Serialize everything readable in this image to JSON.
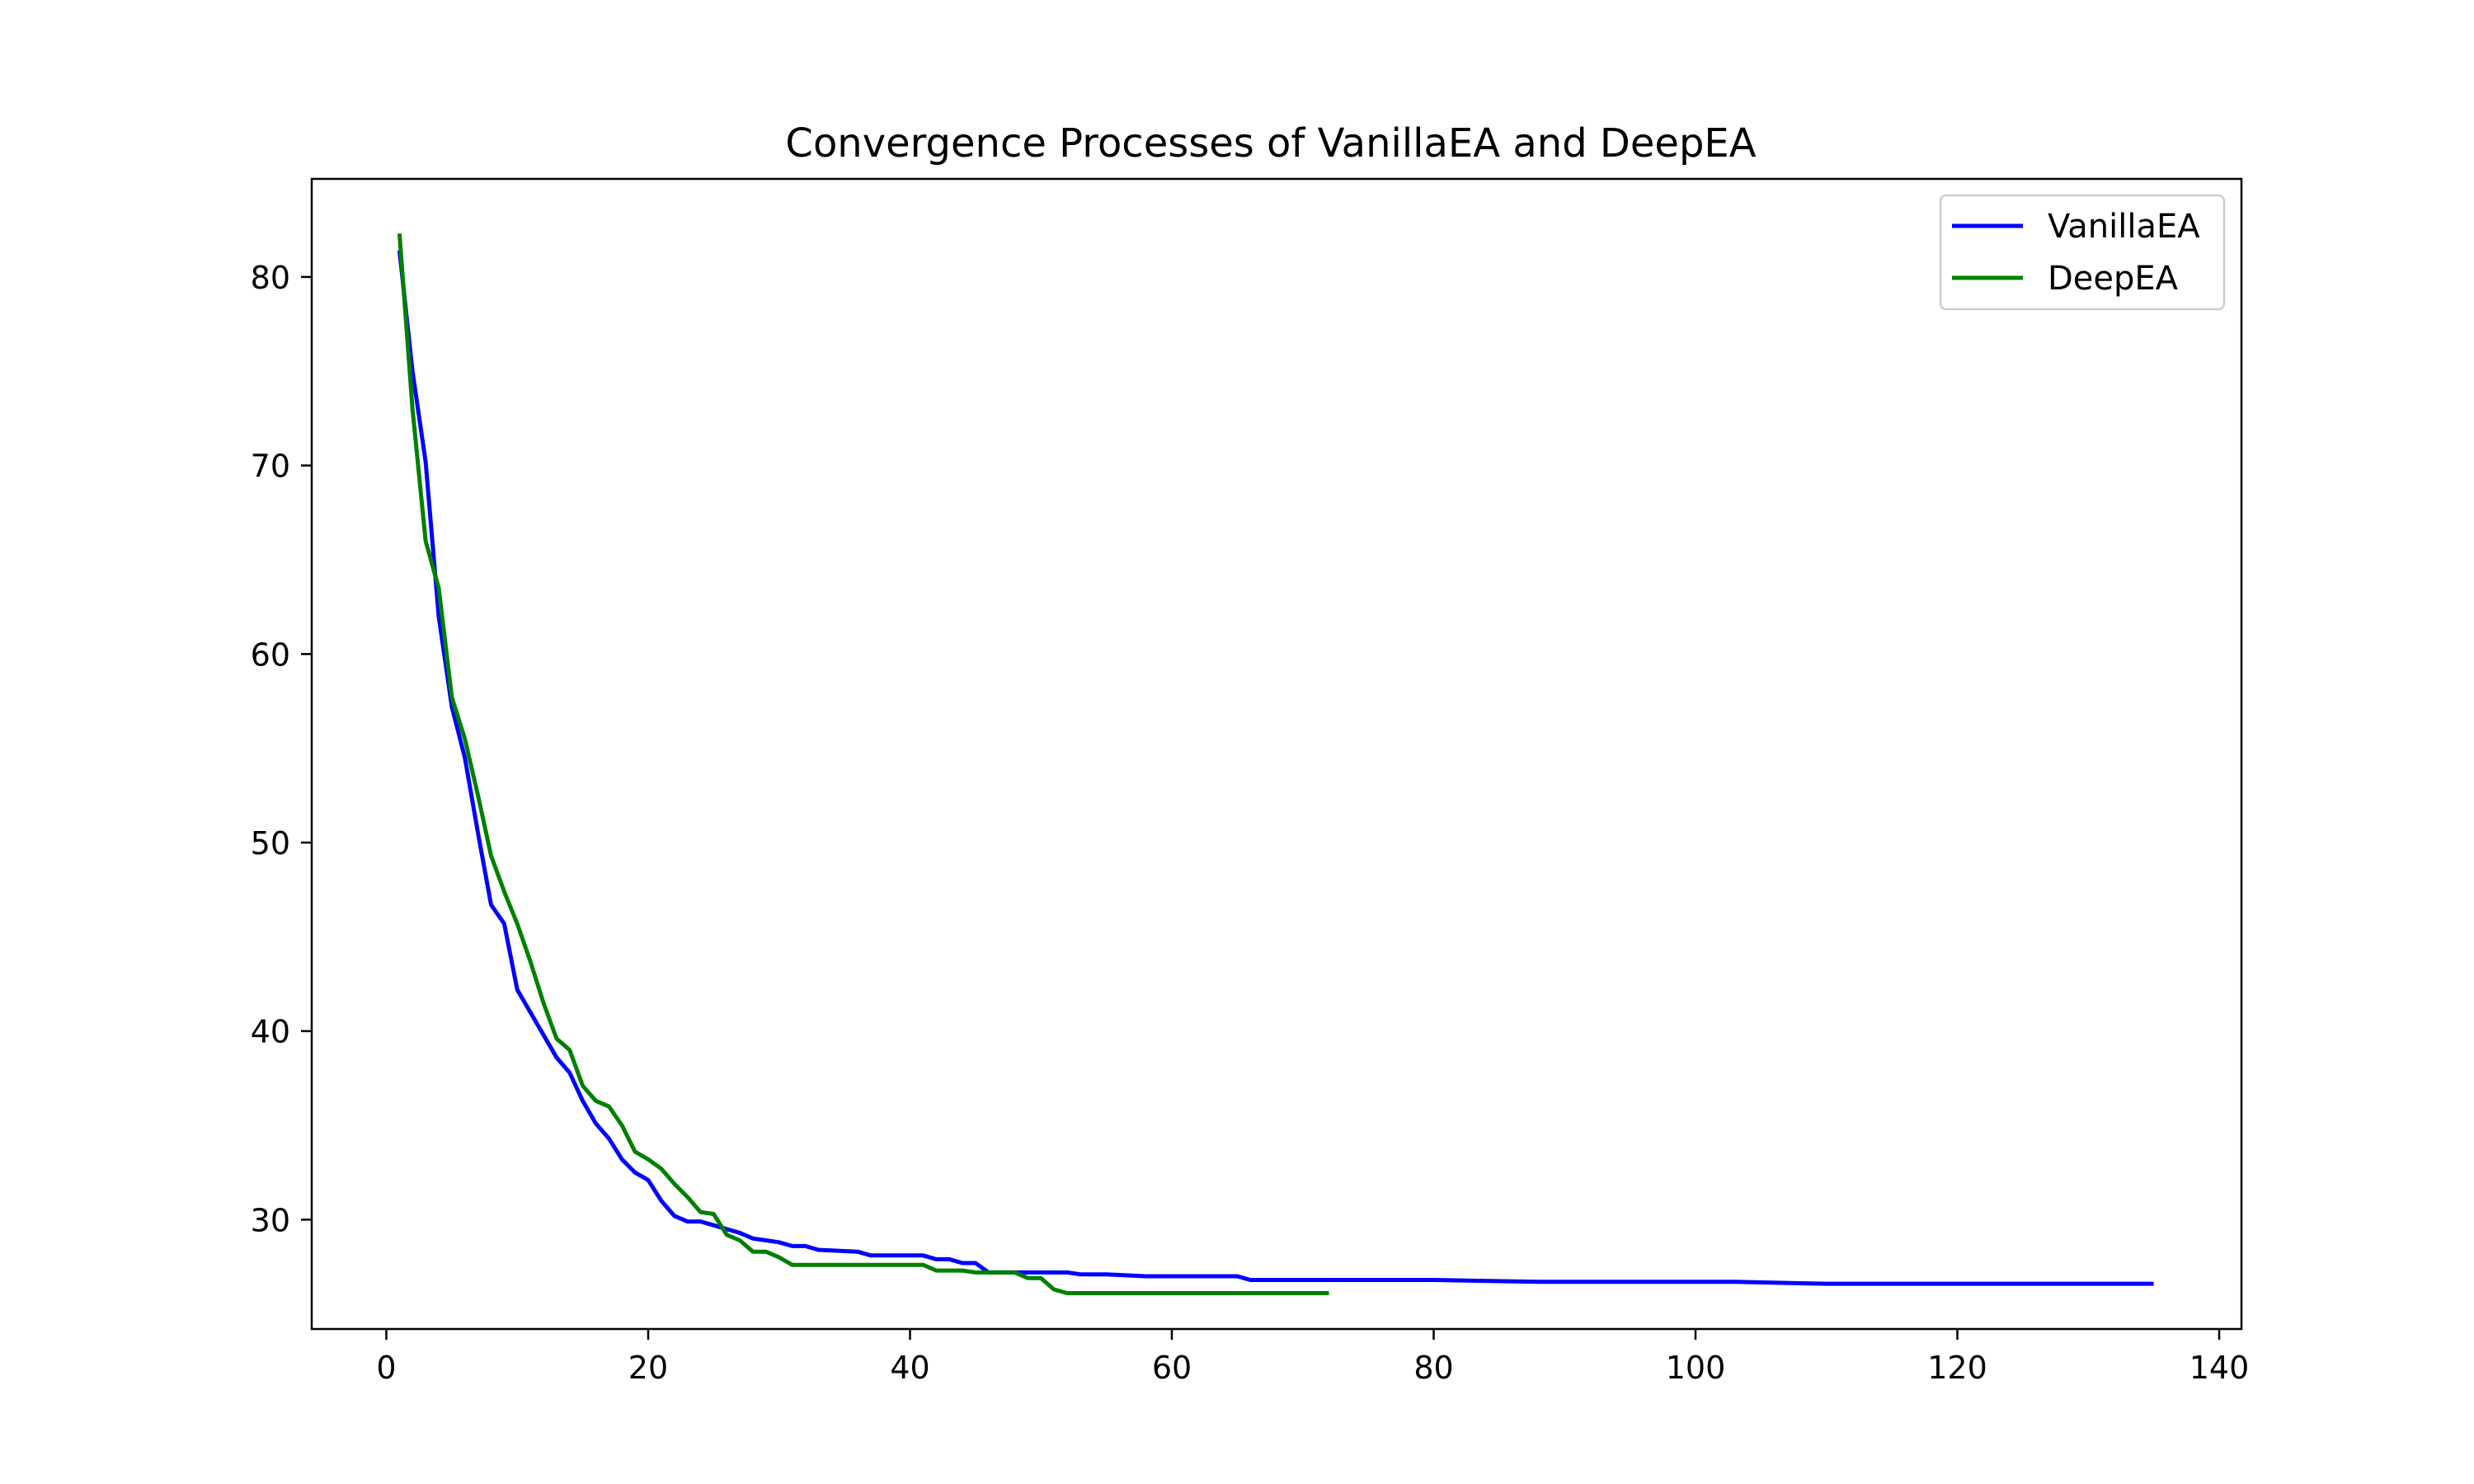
{
  "chart_data": {
    "type": "line",
    "title": "Convergence Processes of VanillaEA and DeepEA",
    "xlabel": "",
    "ylabel": "",
    "xlim": [
      -5.7,
      141.7
    ],
    "ylim": [
      24.2,
      85.2
    ],
    "xticks": [
      0,
      20,
      40,
      60,
      80,
      100,
      120,
      140
    ],
    "yticks": [
      30,
      40,
      50,
      60,
      70,
      80
    ],
    "grid": false,
    "legend": "top-right",
    "series": [
      {
        "name": "VanillaEA",
        "color": "#0000ff",
        "points": [
          [
            1,
            81.4
          ],
          [
            2,
            75.0
          ],
          [
            3,
            70.2
          ],
          [
            4,
            62.0
          ],
          [
            5,
            57.2
          ],
          [
            6,
            54.5
          ],
          [
            7,
            50.5
          ],
          [
            8,
            46.7
          ],
          [
            9,
            45.7
          ],
          [
            10,
            42.2
          ],
          [
            11,
            41.0
          ],
          [
            12,
            39.8
          ],
          [
            13,
            38.6
          ],
          [
            14,
            37.8
          ],
          [
            15,
            36.3
          ],
          [
            16,
            35.1
          ],
          [
            17,
            34.3
          ],
          [
            18,
            33.2
          ],
          [
            19,
            32.5
          ],
          [
            20,
            32.1
          ],
          [
            21,
            31.0
          ],
          [
            22,
            30.2
          ],
          [
            23,
            29.9
          ],
          [
            24,
            29.9
          ],
          [
            25,
            29.7
          ],
          [
            26,
            29.5
          ],
          [
            27,
            29.3
          ],
          [
            28,
            29.0
          ],
          [
            29,
            28.9
          ],
          [
            30,
            28.8
          ],
          [
            31,
            28.6
          ],
          [
            32,
            28.6
          ],
          [
            33,
            28.4
          ],
          [
            36,
            28.3
          ],
          [
            37,
            28.1
          ],
          [
            41,
            28.1
          ],
          [
            42,
            27.9
          ],
          [
            43,
            27.9
          ],
          [
            44,
            27.7
          ],
          [
            45,
            27.7
          ],
          [
            46,
            27.2
          ],
          [
            52,
            27.2
          ],
          [
            53,
            27.1
          ],
          [
            55,
            27.1
          ],
          [
            58,
            27.0
          ],
          [
            65,
            27.0
          ],
          [
            66,
            26.8
          ],
          [
            80,
            26.8
          ],
          [
            88,
            26.7
          ],
          [
            103,
            26.7
          ],
          [
            110,
            26.6
          ],
          [
            135,
            26.6
          ]
        ]
      },
      {
        "name": "DeepEA",
        "color": "#008000",
        "points": [
          [
            1,
            82.3
          ],
          [
            2,
            73.0
          ],
          [
            3,
            66.0
          ],
          [
            4,
            63.5
          ],
          [
            5,
            57.7
          ],
          [
            6,
            55.5
          ],
          [
            7,
            52.5
          ],
          [
            8,
            49.3
          ],
          [
            9,
            47.4
          ],
          [
            10,
            45.7
          ],
          [
            11,
            43.7
          ],
          [
            12,
            41.5
          ],
          [
            13,
            39.6
          ],
          [
            14,
            39.0
          ],
          [
            15,
            37.1
          ],
          [
            16,
            36.3
          ],
          [
            17,
            36.0
          ],
          [
            18,
            35.0
          ],
          [
            19,
            33.6
          ],
          [
            20,
            33.2
          ],
          [
            21,
            32.7
          ],
          [
            22,
            31.9
          ],
          [
            23,
            31.2
          ],
          [
            24,
            30.4
          ],
          [
            25,
            30.3
          ],
          [
            26,
            29.2
          ],
          [
            27,
            28.9
          ],
          [
            28,
            28.3
          ],
          [
            29,
            28.3
          ],
          [
            30,
            28.0
          ],
          [
            31,
            27.6
          ],
          [
            41,
            27.6
          ],
          [
            42,
            27.3
          ],
          [
            44,
            27.3
          ],
          [
            45,
            27.2
          ],
          [
            48,
            27.2
          ],
          [
            49,
            26.9
          ],
          [
            50,
            26.9
          ],
          [
            51,
            26.3
          ],
          [
            52,
            26.1
          ],
          [
            72,
            26.1
          ]
        ]
      }
    ]
  }
}
